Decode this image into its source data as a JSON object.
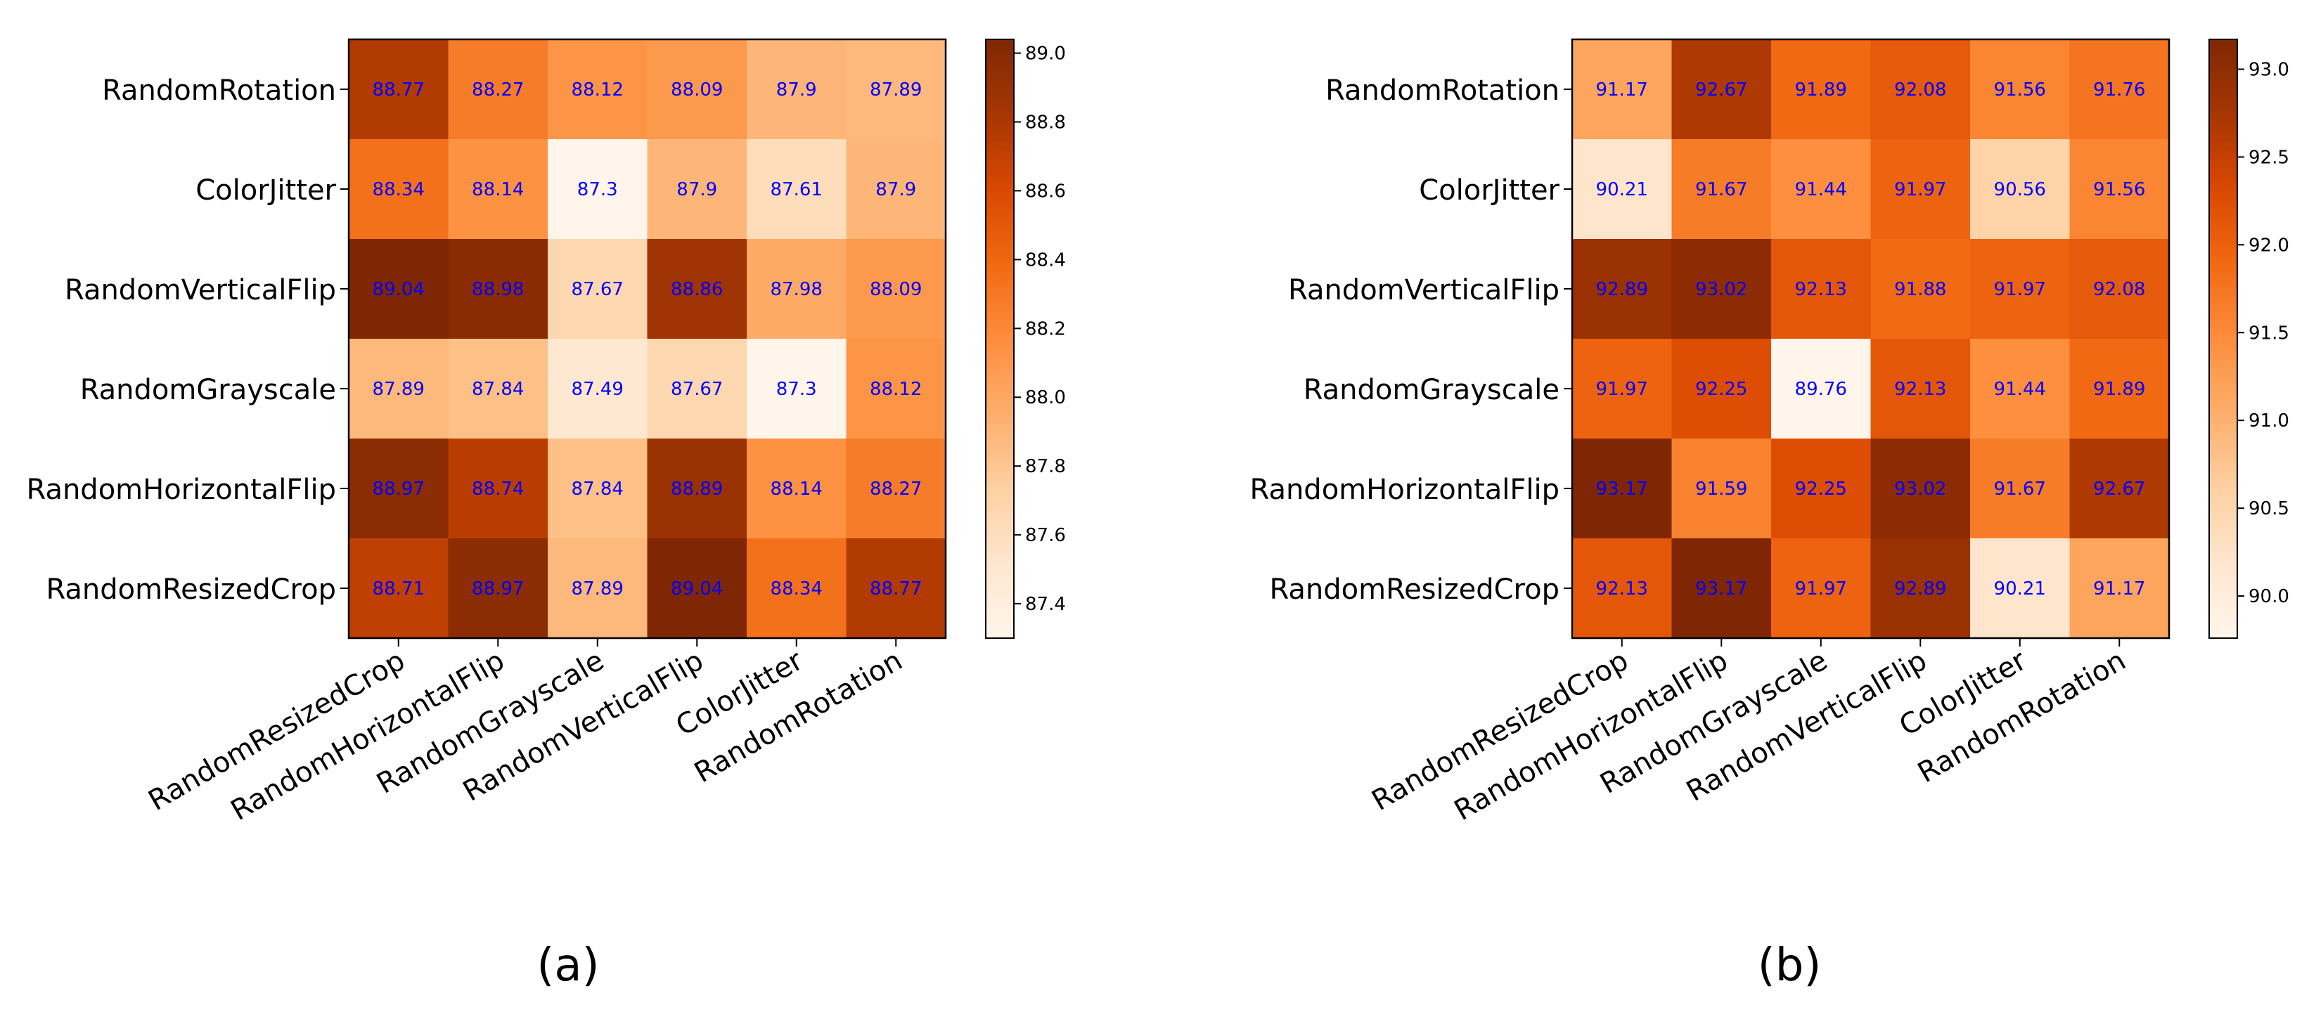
{
  "chart_data": [
    {
      "type": "heatmap",
      "caption": "(a)",
      "row_labels": [
        "RandomRotation",
        "ColorJitter",
        "RandomVerticalFlip",
        "RandomGrayscale",
        "RandomHorizontalFlip",
        "RandomResizedCrop"
      ],
      "col_labels": [
        "RandomResizedCrop",
        "RandomHorizontalFlip",
        "RandomGrayscale",
        "RandomVerticalFlip",
        "ColorJitter",
        "RandomRotation"
      ],
      "values": [
        [
          88.77,
          88.27,
          88.12,
          88.09,
          87.9,
          87.89
        ],
        [
          88.34,
          88.14,
          87.3,
          87.9,
          87.61,
          87.9
        ],
        [
          89.04,
          88.98,
          87.67,
          88.86,
          87.98,
          88.09
        ],
        [
          87.89,
          87.84,
          87.49,
          87.67,
          87.3,
          88.12
        ],
        [
          88.97,
          88.74,
          87.84,
          88.89,
          88.14,
          88.27
        ],
        [
          88.71,
          88.97,
          87.89,
          89.04,
          88.34,
          88.77
        ]
      ],
      "colorbar": {
        "min": 87.3,
        "max": 89.04,
        "ticks": [
          "87.4",
          "87.6",
          "87.8",
          "88.0",
          "88.2",
          "88.4",
          "88.6",
          "88.8",
          "89.0"
        ]
      },
      "colormap": "Oranges",
      "annotation_color": "#0000ff"
    },
    {
      "type": "heatmap",
      "caption": "(b)",
      "row_labels": [
        "RandomRotation",
        "ColorJitter",
        "RandomVerticalFlip",
        "RandomGrayscale",
        "RandomHorizontalFlip",
        "RandomResizedCrop"
      ],
      "col_labels": [
        "RandomResizedCrop",
        "RandomHorizontalFlip",
        "RandomGrayscale",
        "RandomVerticalFlip",
        "ColorJitter",
        "RandomRotation"
      ],
      "values": [
        [
          91.17,
          92.67,
          91.89,
          92.08,
          91.56,
          91.76
        ],
        [
          90.21,
          91.67,
          91.44,
          91.97,
          90.56,
          91.56
        ],
        [
          92.89,
          93.02,
          92.13,
          91.88,
          91.97,
          92.08
        ],
        [
          91.97,
          92.25,
          89.76,
          92.13,
          91.44,
          91.89
        ],
        [
          93.17,
          91.59,
          92.25,
          93.02,
          91.67,
          92.67
        ],
        [
          92.13,
          93.17,
          91.97,
          92.89,
          90.21,
          91.17
        ]
      ],
      "colorbar": {
        "min": 89.76,
        "max": 93.17,
        "ticks": [
          "90.0",
          "90.5",
          "91.0",
          "91.5",
          "92.0",
          "92.5",
          "93.0"
        ]
      },
      "colormap": "Oranges",
      "annotation_color": "#0000ff"
    }
  ]
}
